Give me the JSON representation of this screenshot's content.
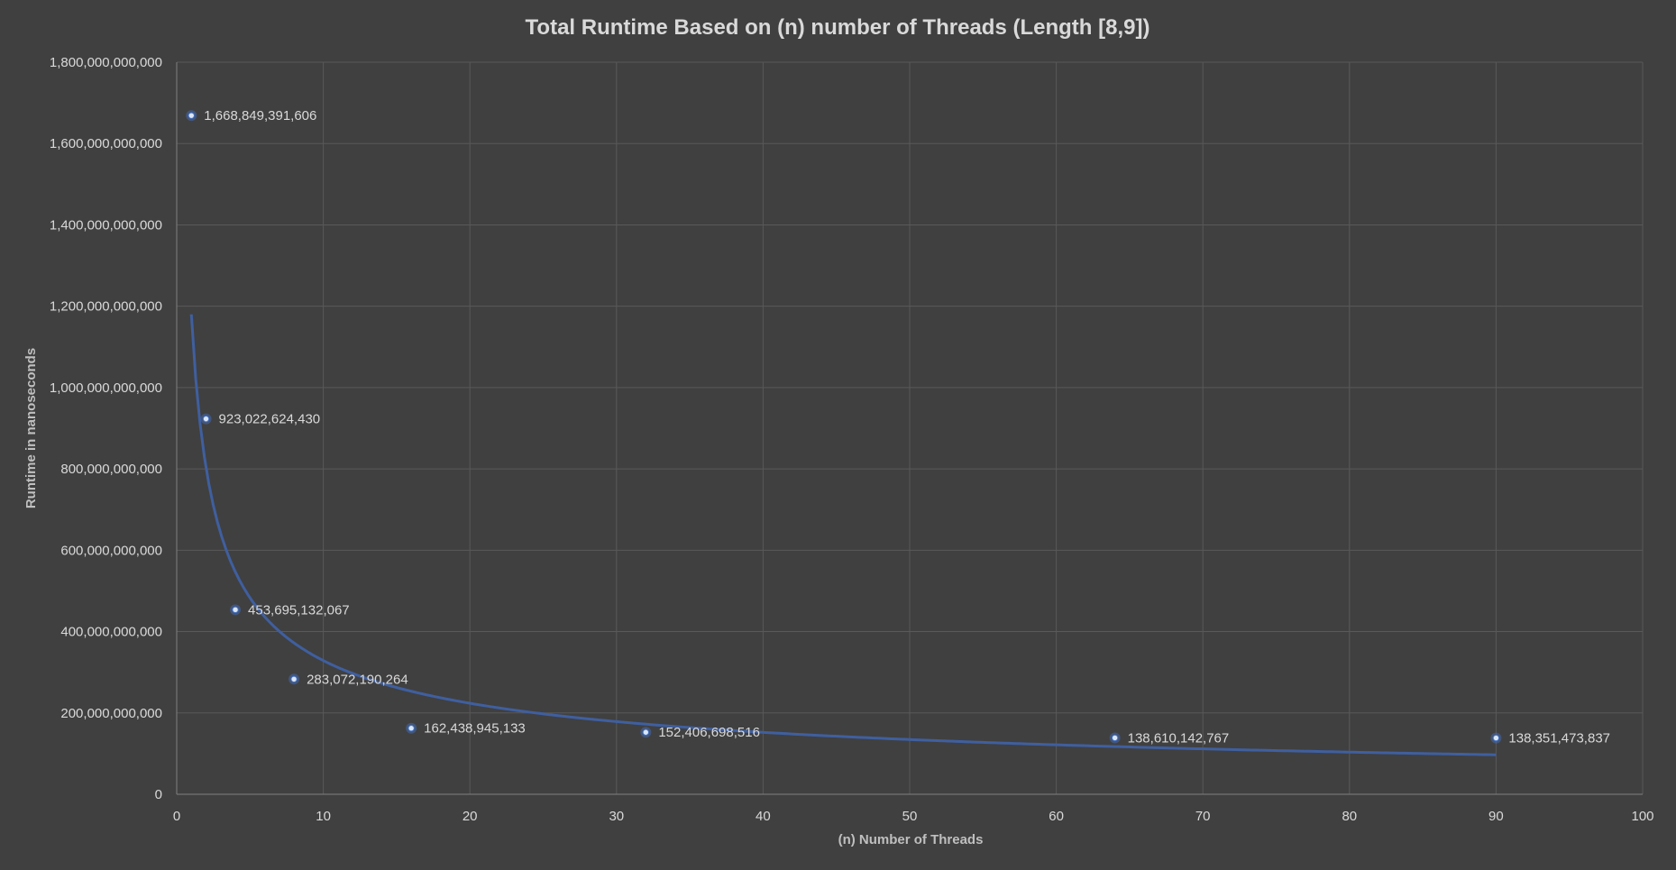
{
  "chart_data": {
    "type": "scatter",
    "title": "Total Runtime Based on (n) number of Threads (Length [8,9])",
    "xlabel": "(n) Number of Threads",
    "ylabel": "Runtime in nanoseconds",
    "xlim": [
      0,
      100
    ],
    "ylim": [
      0,
      1800000000000
    ],
    "x_ticks": [
      0,
      10,
      20,
      30,
      40,
      50,
      60,
      70,
      80,
      90,
      100
    ],
    "y_ticks": [
      0,
      200000000000,
      400000000000,
      600000000000,
      800000000000,
      1000000000000,
      1200000000000,
      1400000000000,
      1600000000000,
      1800000000000
    ],
    "x_tick_labels": [
      "0",
      "10",
      "20",
      "30",
      "40",
      "50",
      "60",
      "70",
      "80",
      "90",
      "100"
    ],
    "y_tick_labels": [
      "0",
      "200,000,000,000",
      "400,000,000,000",
      "600,000,000,000",
      "800,000,000,000",
      "1,000,000,000,000",
      "1,200,000,000,000",
      "1,400,000,000,000",
      "1,600,000,000,000",
      "1,800,000,000,000"
    ],
    "grid": true,
    "series": [
      {
        "x": [
          1,
          2,
          4,
          8,
          16,
          32,
          64,
          90
        ],
        "y": [
          1668849391606,
          923022624430,
          453695132067,
          283072190264,
          162438945133,
          152406698516,
          138610142767,
          138351473837
        ],
        "labels": [
          "1,668,849,391,606",
          "923,022,624,430",
          "453,695,132,067",
          "283,072,190,264",
          "162,438,945,133",
          "152,406,698,516",
          "138,610,142,767",
          "138,351,473,837"
        ],
        "color": "#4472c4"
      }
    ],
    "trendline": {
      "type": "power",
      "x_range": [
        1,
        90
      ],
      "coefficient": 1180000000000,
      "exponent": -0.555,
      "color": "#3f5f9f"
    },
    "colors": {
      "background": "#404040",
      "grid": "#595959",
      "text": "#d9d9d9",
      "marker": "#4472c4",
      "marker_center": "#dbe6f7"
    }
  }
}
